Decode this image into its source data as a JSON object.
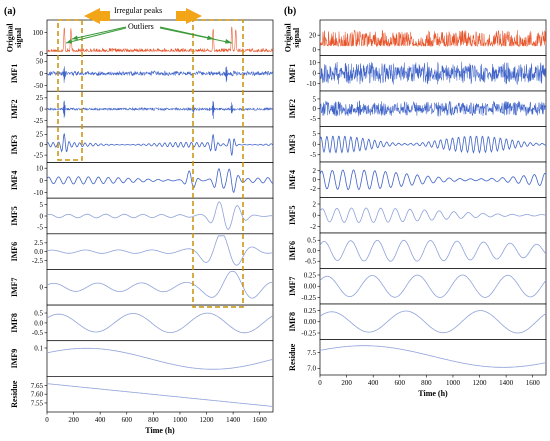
{
  "figure": {
    "panel_labels": [
      "(a)",
      "(b)"
    ],
    "annotations": {
      "irregular_peaks": "Irregular peaks",
      "outliers": "Outliers"
    },
    "colors": {
      "original": "#E8542A",
      "imf": "#3F63C8",
      "imf_light": "#8FA2DA",
      "highlight_box": "#C8910A",
      "arrow": "#F2A516",
      "annotation_arrow": "#3A9A3A"
    }
  },
  "chart_data": [
    {
      "type": "line",
      "panel": "(a)",
      "xlabel": "Time (h)",
      "xlim": [
        0,
        1700
      ],
      "xticks": [
        "0",
        "200",
        "400",
        "600",
        "800",
        "1000",
        "1200",
        "1400",
        "1600"
      ],
      "series": [
        {
          "name": "Original signal",
          "yticks": [
            "0",
            "100"
          ],
          "ylim": [
            0,
            150
          ],
          "shape": "spiky",
          "amplitude": 15,
          "baseline": 10,
          "peaks": [
            [
              130,
              125
            ],
            [
              180,
              120
            ],
            [
              1250,
              118
            ],
            [
              1390,
              130
            ],
            [
              1420,
              115
            ]
          ]
        },
        {
          "name": "IMF1",
          "yticks": [
            "-50",
            "0",
            "50"
          ],
          "ylim": [
            -65,
            65
          ],
          "shape": "noise",
          "amplitude": 10,
          "peaks": [
            [
              130,
              45
            ],
            [
              1350,
              50
            ]
          ]
        },
        {
          "name": "IMF2",
          "yticks": [
            "-25",
            "0",
            "25"
          ],
          "ylim": [
            -35,
            35
          ],
          "shape": "noise",
          "amplitude": 3,
          "peaks": [
            [
              130,
              28
            ],
            [
              1100,
              15
            ],
            [
              1250,
              22
            ],
            [
              1390,
              26
            ]
          ]
        },
        {
          "name": "IMF3",
          "yticks": [
            "-25",
            "0",
            "25"
          ],
          "ylim": [
            -38,
            38
          ],
          "shape": "oscillation",
          "amplitude": 6,
          "period": 40,
          "peaks": [
            [
              130,
              22
            ],
            [
              1250,
              22
            ],
            [
              1390,
              25
            ]
          ]
        },
        {
          "name": "IMF4",
          "yticks": [
            "-10",
            "0",
            "10"
          ],
          "ylim": [
            -13,
            13
          ],
          "shape": "oscillation",
          "amplitude": 3,
          "period": 75,
          "peaks": [
            [
              1080,
              8
            ],
            [
              1290,
              9
            ],
            [
              1390,
              10
            ]
          ]
        },
        {
          "name": "IMF5",
          "yticks": [
            "-5",
            "0",
            "5"
          ],
          "ylim": [
            -7,
            7
          ],
          "shape": "oscillation",
          "amplitude": 0.8,
          "period": 140,
          "peaks": [
            [
              1300,
              5.5
            ],
            [
              1420,
              4
            ]
          ]
        },
        {
          "name": "IMF6",
          "yticks": [
            "-2.5",
            "0.0",
            "2.5"
          ],
          "ylim": [
            -4.5,
            4.5
          ],
          "shape": "oscillation",
          "amplitude": 0.5,
          "period": 250,
          "peaks": [
            [
              1280,
              3.2
            ],
            [
              1390,
              2.5
            ]
          ]
        },
        {
          "name": "IMF7",
          "yticks": [
            "0"
          ],
          "ylim": [
            -2.5,
            2.5
          ],
          "shape": "oscillation",
          "amplitude": 0.7,
          "period": 330,
          "peaks": [
            [
              1400,
              2
            ]
          ]
        },
        {
          "name": "IMF8",
          "yticks": [
            "-0.5",
            "0.0",
            "0.5"
          ],
          "ylim": [
            -0.8,
            0.8
          ],
          "shape": "oscillation",
          "amplitude": 0.5,
          "period": 560,
          "peaks": []
        },
        {
          "name": "IMF9",
          "yticks": [
            "0.1"
          ],
          "ylim": [
            -0.15,
            0.15
          ],
          "shape": "oscillation",
          "amplitude": 0.11,
          "period": 1900,
          "peaks": []
        },
        {
          "name": "Residue",
          "yticks": [
            "7.65",
            "7.60",
            "7.55"
          ],
          "ylim": [
            7.51,
            7.69
          ],
          "shape": "trend",
          "from": 7.66,
          "to": 7.53,
          "peaks": []
        }
      ]
    },
    {
      "type": "line",
      "panel": "(b)",
      "xlabel": "Time (h)",
      "xlim": [
        0,
        1700
      ],
      "xticks": [
        "0",
        "200",
        "400",
        "600",
        "800",
        "1000",
        "1200",
        "1400",
        "1600"
      ],
      "series": [
        {
          "name": "Original signal",
          "yticks": [
            "0",
            "20"
          ],
          "ylim": [
            -5,
            38
          ],
          "shape": "spiky",
          "amplitude": 22,
          "baseline": 5,
          "peaks": []
        },
        {
          "name": "IMF1",
          "yticks": [
            "-10",
            "0",
            "10"
          ],
          "ylim": [
            -15,
            15
          ],
          "shape": "noise",
          "amplitude": 11,
          "peaks": []
        },
        {
          "name": "IMF2",
          "yticks": [
            "-5",
            "0",
            "5"
          ],
          "ylim": [
            -8,
            8
          ],
          "shape": "noise",
          "amplitude": 4,
          "peaks": []
        },
        {
          "name": "IMF3",
          "yticks": [
            "-5",
            "0",
            "5"
          ],
          "ylim": [
            -7.5,
            7.5
          ],
          "shape": "oscillation",
          "amplitude": 4,
          "period": 45,
          "peaks": []
        },
        {
          "name": "IMF4",
          "yticks": [
            "-2",
            "0",
            "2"
          ],
          "ylim": [
            -3.5,
            3.5
          ],
          "shape": "oscillation",
          "amplitude": 2.2,
          "period": 80,
          "peaks": []
        },
        {
          "name": "IMF5",
          "yticks": [
            "-2",
            "0",
            "2"
          ],
          "ylim": [
            -2.8,
            2.8
          ],
          "shape": "oscillation",
          "amplitude": 1.3,
          "period": 110,
          "peaks": []
        },
        {
          "name": "IMF6",
          "yticks": [
            "0.5",
            "0.0",
            "-0.5"
          ],
          "ylim": [
            -0.75,
            0.75
          ],
          "shape": "oscillation",
          "amplitude": 0.5,
          "period": 200,
          "peaks": []
        },
        {
          "name": "IMF7",
          "yticks": [
            "0.25",
            "0.00",
            "-0.25"
          ],
          "ylim": [
            -0.35,
            0.35
          ],
          "shape": "oscillation",
          "amplitude": 0.25,
          "period": 340,
          "peaks": []
        },
        {
          "name": "IMF8",
          "yticks": [
            "0.25",
            "0.00",
            "-0.25"
          ],
          "ylim": [
            -0.35,
            0.35
          ],
          "shape": "oscillation",
          "amplitude": 0.25,
          "period": 560,
          "peaks": []
        },
        {
          "name": "Residue",
          "yticks": [
            "7.5",
            "7.0"
          ],
          "ylim": [
            6.85,
            7.85
          ],
          "shape": "oscillation",
          "amplitude": 0.38,
          "period": 2100,
          "offset": 7.38,
          "peaks": []
        }
      ]
    }
  ]
}
